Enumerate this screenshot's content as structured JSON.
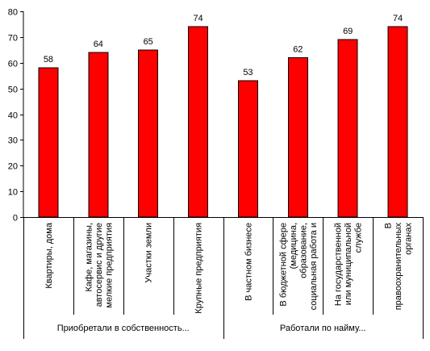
{
  "chart_data": {
    "type": "bar",
    "title": "",
    "xlabel": "",
    "ylabel": "",
    "ylim": [
      0,
      80
    ],
    "yticks": [
      0,
      10,
      20,
      30,
      40,
      50,
      60,
      70,
      80
    ],
    "grid": false,
    "legend": "none",
    "bar_color": "#FF0000",
    "bar_edge_color": "#000000",
    "categories": [
      "Квартиры, дома",
      "Кафе, магазины, автосервис и другие мелкие предприятия",
      "Участки земли",
      "Крупные предприятия",
      "В частном бизнесе",
      "В бюджетной сфере (медицина, образование, социальная работа и",
      "На государственной или муниципальной службе",
      "В правоохранительных органах"
    ],
    "category_lines": [
      [
        "Квартиры, дома"
      ],
      [
        "Кафе, магазины,",
        "автосервис и другие",
        "мелкие предприятия"
      ],
      [
        "Участки земли"
      ],
      [
        "Крупные предприятия"
      ],
      [
        "В частном бизнесе"
      ],
      [
        "В бюджетной сфере",
        "(медицина,",
        "образование,",
        "социальная работа и"
      ],
      [
        "На государственной",
        "или муниципальной",
        "службе"
      ],
      [
        "В",
        "правоохранительных",
        "органах"
      ]
    ],
    "values": [
      58,
      64,
      65,
      74,
      53,
      62,
      69,
      74
    ],
    "groups": [
      {
        "label": "Приобретали в собственность...",
        "start": 0,
        "end": 3
      },
      {
        "label": "Работали по найму...",
        "start": 4,
        "end": 7
      }
    ]
  }
}
